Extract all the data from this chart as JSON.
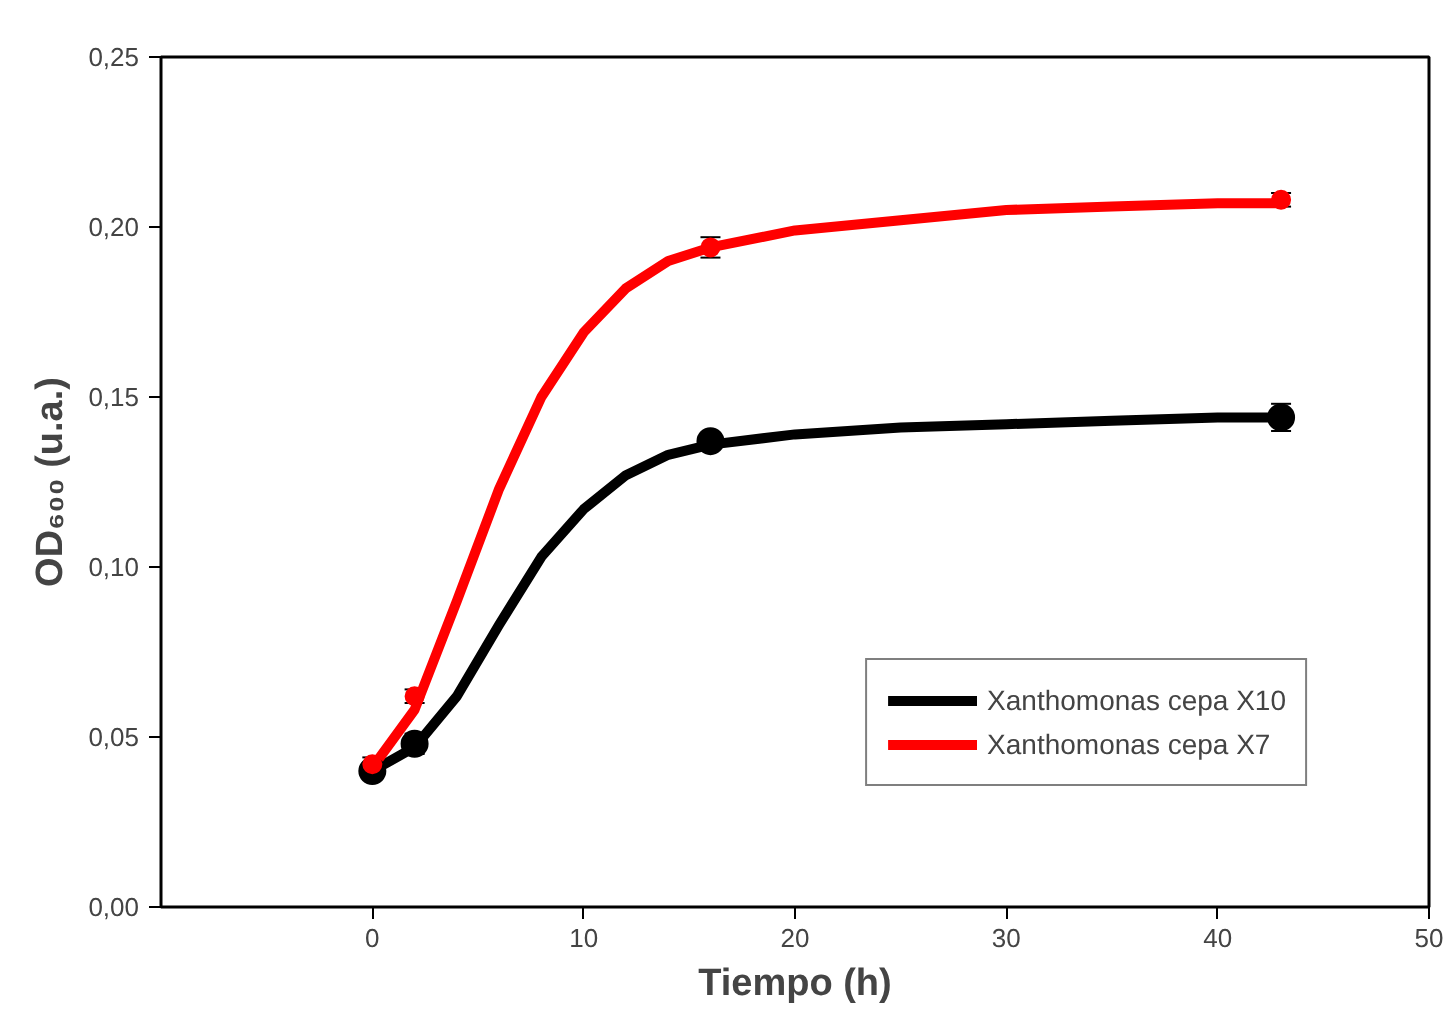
{
  "chart_data": {
    "type": "line",
    "xlabel": "Tiempo (h)",
    "ylabel": "OD₆₀₀ (u.a.)",
    "xlim": [
      -10,
      50
    ],
    "xticks": [
      0,
      10,
      20,
      30,
      40,
      50
    ],
    "ylim": [
      0,
      0.25
    ],
    "yticks": [
      {
        "value": 0,
        "label": "0,00"
      },
      {
        "value": 0.05,
        "label": "0,05"
      },
      {
        "value": 0.1,
        "label": "0,10"
      },
      {
        "value": 0.15,
        "label": "0,15"
      },
      {
        "value": 0.2,
        "label": "0,20"
      },
      {
        "value": 0.25,
        "label": "0,25"
      }
    ],
    "grid": false,
    "legend": "bottom right",
    "marker": "none",
    "series": [
      {
        "name": "Xanthomonas cepa X10",
        "color": "#000000",
        "x": [
          0,
          2,
          4,
          6,
          8,
          10,
          12,
          14,
          16,
          20,
          25,
          30,
          35,
          40,
          43
        ],
        "values": [
          0.04,
          0.047,
          0.062,
          0.083,
          0.103,
          0.117,
          0.127,
          0.133,
          0.136,
          0.139,
          0.141,
          0.142,
          0.143,
          0.144,
          0.144
        ]
      },
      {
        "name": "Xanthomonas cepa X7",
        "color": "#ff0000",
        "x": [
          0,
          2,
          4,
          6,
          8,
          10,
          12,
          14,
          16,
          20,
          25,
          30,
          35,
          40,
          43
        ],
        "values": [
          0.041,
          0.058,
          0.09,
          0.123,
          0.15,
          0.169,
          0.182,
          0.19,
          0.194,
          0.199,
          0.202,
          0.205,
          0.206,
          0.207,
          0.207
        ]
      },
      {
        "type": "scatter",
        "marker": "circle",
        "color": "#000000",
        "x": [
          0,
          2,
          16,
          43
        ],
        "values": [
          0.04,
          0.048,
          0.137,
          0.144
        ],
        "errors": [
          0.002,
          0.003,
          0.002,
          0.004
        ]
      },
      {
        "type": "scatter",
        "marker": "circle",
        "color": "#ff0000",
        "x": [
          0,
          2,
          16,
          43
        ],
        "values": [
          0.042,
          0.062,
          0.194,
          0.208
        ],
        "errors": [
          0.002,
          0.002,
          0.003,
          0.002
        ]
      }
    ]
  }
}
